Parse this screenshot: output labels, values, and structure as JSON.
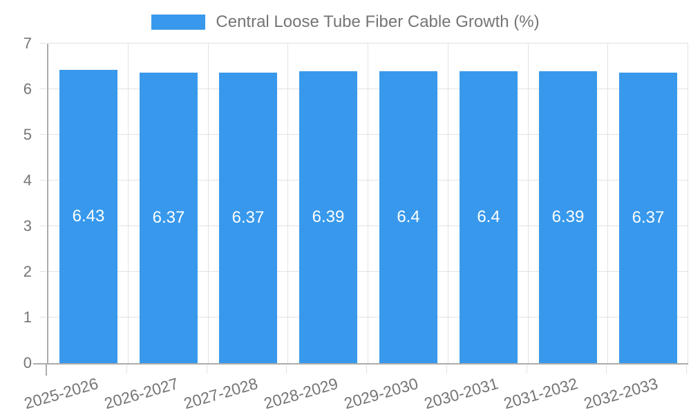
{
  "legend": {
    "label": "Central Loose Tube Fiber Cable Growth (%)"
  },
  "colors": {
    "bar": "#3899ec",
    "axis_line": "#ababab",
    "grid_line": "#e2e2e2",
    "tick_text": "#757575",
    "value_label_text": "#ffffff",
    "background": "#ffffff"
  },
  "chart_data": {
    "type": "bar",
    "title": "Central Loose Tube Fiber Cable Growth (%)",
    "categories": [
      "2025-2026",
      "2026-2027",
      "2027-2028",
      "2028-2029",
      "2029-2030",
      "2030-2031",
      "2031-2032",
      "2032-2033"
    ],
    "values": [
      6.43,
      6.37,
      6.37,
      6.39,
      6.4,
      6.4,
      6.39,
      6.37
    ],
    "bar_labels": [
      "6.43",
      "6.37",
      "6.37",
      "6.39",
      "6.4",
      "6.4",
      "6.39",
      "6.37"
    ],
    "xlabel": "",
    "ylabel": "",
    "ylim": [
      0,
      7
    ],
    "yticks": [
      "0",
      "1",
      "2",
      "3",
      "4",
      "5",
      "6",
      "7"
    ],
    "grid": true,
    "legend_position": "top",
    "x_label_rotation_deg": -16
  }
}
